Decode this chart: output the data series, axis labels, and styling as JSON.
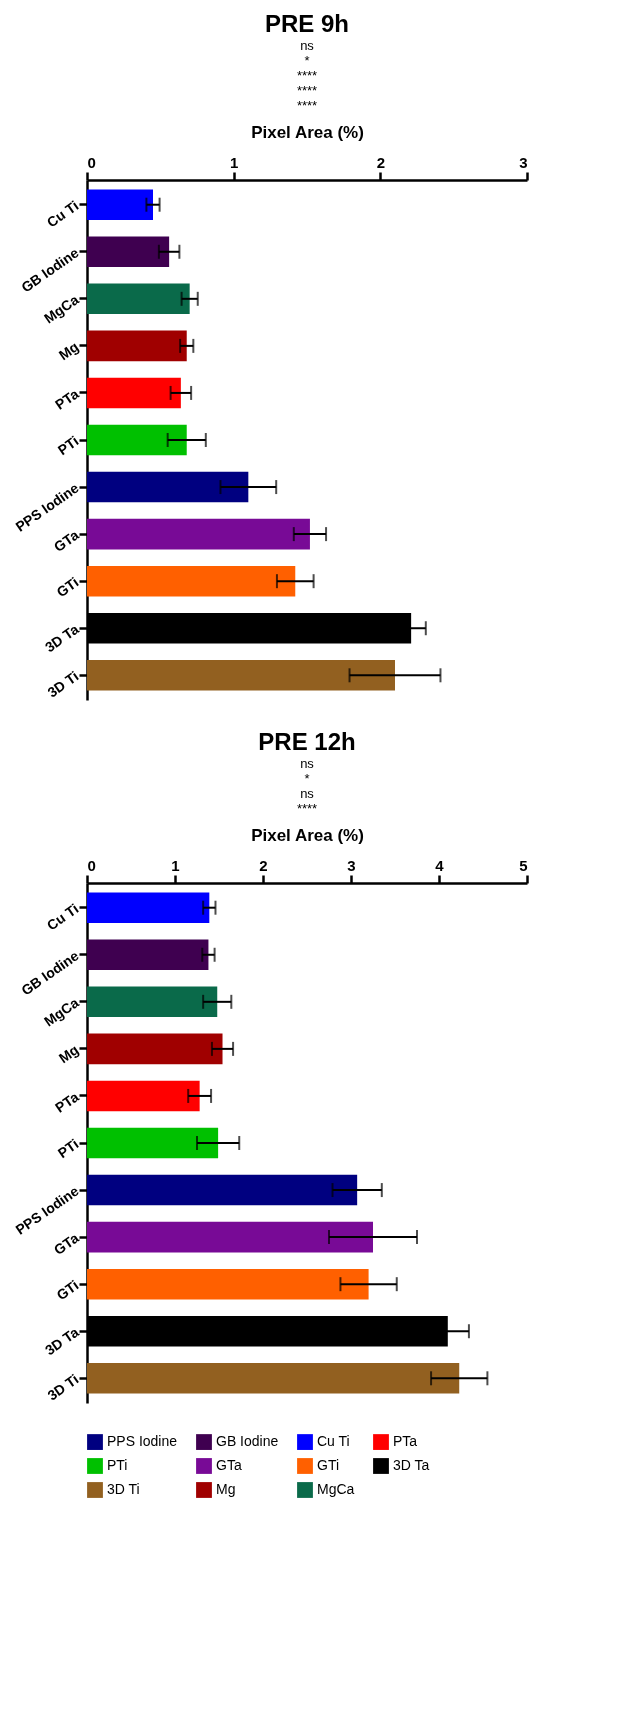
{
  "chart_data": [
    {
      "type": "bar",
      "orientation": "horizontal",
      "title": "PRE 9h",
      "xlabel": "Pixel Area  (%)",
      "categories": [
        "Cu Ti",
        "GB Iodine",
        "MgCa",
        "Mg",
        "PTa",
        "PTi",
        "PPS Iodine",
        "GTa",
        "GTi",
        "3D Ta",
        "3D Ti"
      ],
      "series": [
        {
          "name": "PPS Iodine",
          "color": "#000080",
          "values": [
            null,
            null,
            null,
            null,
            null,
            null,
            1.1,
            null,
            null,
            null,
            null
          ],
          "errors": [
            null,
            null,
            null,
            null,
            null,
            null,
            0.19,
            null,
            null,
            null,
            null
          ]
        },
        {
          "name": "GB Iodine",
          "color": "#3f0050",
          "values": [
            null,
            0.56,
            null,
            null,
            null,
            null,
            null,
            null,
            null,
            null,
            null
          ],
          "errors": [
            null,
            0.07,
            null,
            null,
            null,
            null,
            null,
            null,
            null,
            null,
            null
          ]
        },
        {
          "name": "Cu Ti",
          "color": "#0000ff",
          "values": [
            0.45,
            null,
            null,
            null,
            null,
            null,
            null,
            null,
            null,
            null,
            null
          ],
          "errors": [
            0.045,
            null,
            null,
            null,
            null,
            null,
            null,
            null,
            null,
            null,
            null
          ]
        },
        {
          "name": "PTa",
          "color": "#ff0000",
          "values": [
            null,
            null,
            null,
            null,
            0.64,
            null,
            null,
            null,
            null,
            null,
            null
          ],
          "errors": [
            null,
            null,
            null,
            null,
            0.07,
            null,
            null,
            null,
            null,
            null,
            null
          ]
        },
        {
          "name": "PTi",
          "color": "#00c000",
          "values": [
            null,
            null,
            null,
            null,
            null,
            0.68,
            null,
            null,
            null,
            null,
            null
          ],
          "errors": [
            null,
            null,
            null,
            null,
            null,
            0.13,
            null,
            null,
            null,
            null,
            null
          ]
        },
        {
          "name": "GTa",
          "color": "#780a96",
          "values": [
            null,
            null,
            null,
            null,
            null,
            null,
            null,
            1.52,
            null,
            null,
            null
          ],
          "errors": [
            null,
            null,
            null,
            null,
            null,
            null,
            null,
            0.11,
            null,
            null,
            null
          ]
        },
        {
          "name": "GTi",
          "color": "#ff6000",
          "values": [
            null,
            null,
            null,
            null,
            null,
            null,
            null,
            null,
            1.42,
            null,
            null
          ],
          "errors": [
            null,
            null,
            null,
            null,
            null,
            null,
            null,
            null,
            0.125,
            null,
            null
          ]
        },
        {
          "name": "3D Ta",
          "color": "#000000",
          "values": [
            null,
            null,
            null,
            null,
            null,
            null,
            null,
            null,
            null,
            2.21,
            null
          ],
          "errors": [
            null,
            null,
            null,
            null,
            null,
            null,
            null,
            null,
            null,
            0.1,
            null
          ]
        },
        {
          "name": "3D Ti",
          "color": "#926020",
          "values": [
            null,
            null,
            null,
            null,
            null,
            null,
            null,
            null,
            null,
            null,
            2.1
          ],
          "errors": [
            null,
            null,
            null,
            null,
            null,
            null,
            null,
            null,
            null,
            null,
            0.31
          ]
        },
        {
          "name": "Mg",
          "color": "#a00000",
          "values": [
            null,
            null,
            null,
            0.68,
            null,
            null,
            null,
            null,
            null,
            null,
            null
          ],
          "errors": [
            null,
            null,
            null,
            0.045,
            null,
            null,
            null,
            null,
            null,
            null,
            null
          ]
        },
        {
          "name": "MgCa",
          "color": "#0a6a4a",
          "values": [
            null,
            null,
            0.7,
            null,
            null,
            null,
            null,
            null,
            null,
            null,
            null
          ],
          "errors": [
            null,
            null,
            0.055,
            null,
            null,
            null,
            null,
            null,
            null,
            null,
            null
          ]
        }
      ],
      "xlim": [
        0,
        3
      ],
      "xticks": [
        0,
        1,
        2,
        3
      ],
      "annotations": [
        "ns",
        "*",
        "****",
        "****",
        "****"
      ],
      "legend": "bottom"
    },
    {
      "type": "bar",
      "orientation": "horizontal",
      "title": "PRE 12h",
      "xlabel": "Pixel Area  (%)",
      "categories": [
        "Cu Ti",
        "GB Iodine",
        "MgCa",
        "Mg",
        "PTa",
        "PTi",
        "PPS Iodine",
        "GTa",
        "GTi",
        "3D Ta",
        "3D Ti"
      ],
      "series": [
        {
          "name": "PPS Iodine",
          "color": "#000080",
          "values": [
            null,
            null,
            null,
            null,
            null,
            null,
            3.07,
            null,
            null,
            null,
            null
          ],
          "errors": [
            null,
            null,
            null,
            null,
            null,
            null,
            0.28,
            null,
            null,
            null,
            null
          ]
        },
        {
          "name": "GB Iodine",
          "color": "#3f0050",
          "values": [
            null,
            1.38,
            null,
            null,
            null,
            null,
            null,
            null,
            null,
            null,
            null
          ],
          "errors": [
            null,
            0.07,
            null,
            null,
            null,
            null,
            null,
            null,
            null,
            null,
            null
          ]
        },
        {
          "name": "Cu Ti",
          "color": "#0000ff",
          "values": [
            1.39,
            null,
            null,
            null,
            null,
            null,
            null,
            null,
            null,
            null,
            null
          ],
          "errors": [
            0.07,
            null,
            null,
            null,
            null,
            null,
            null,
            null,
            null,
            null,
            null
          ]
        },
        {
          "name": "PTa",
          "color": "#ff0000",
          "values": [
            null,
            null,
            null,
            null,
            1.28,
            null,
            null,
            null,
            null,
            null,
            null
          ],
          "errors": [
            null,
            null,
            null,
            null,
            0.13,
            null,
            null,
            null,
            null,
            null,
            null
          ]
        },
        {
          "name": "PTi",
          "color": "#00c000",
          "values": [
            null,
            null,
            null,
            null,
            null,
            1.49,
            null,
            null,
            null,
            null,
            null
          ],
          "errors": [
            null,
            null,
            null,
            null,
            null,
            0.24,
            null,
            null,
            null,
            null,
            null
          ]
        },
        {
          "name": "GTa",
          "color": "#780a96",
          "values": [
            null,
            null,
            null,
            null,
            null,
            null,
            null,
            3.25,
            null,
            null,
            null
          ],
          "errors": [
            null,
            null,
            null,
            null,
            null,
            null,
            null,
            0.5,
            null,
            null,
            null
          ]
        },
        {
          "name": "GTi",
          "color": "#ff6000",
          "values": [
            null,
            null,
            null,
            null,
            null,
            null,
            null,
            null,
            3.2,
            null,
            null
          ],
          "errors": [
            null,
            null,
            null,
            null,
            null,
            null,
            null,
            null,
            0.32,
            null,
            null
          ]
        },
        {
          "name": "3D Ta",
          "color": "#000000",
          "values": [
            null,
            null,
            null,
            null,
            null,
            null,
            null,
            null,
            null,
            4.1,
            null
          ],
          "errors": [
            null,
            null,
            null,
            null,
            null,
            null,
            null,
            null,
            null,
            0.24,
            null
          ]
        },
        {
          "name": "3D Ti",
          "color": "#926020",
          "values": [
            null,
            null,
            null,
            null,
            null,
            null,
            null,
            null,
            null,
            null,
            4.23
          ],
          "errors": [
            null,
            null,
            null,
            null,
            null,
            null,
            null,
            null,
            null,
            null,
            0.32
          ]
        },
        {
          "name": "Mg",
          "color": "#a00000",
          "values": [
            null,
            null,
            null,
            1.54,
            null,
            null,
            null,
            null,
            null,
            null,
            null
          ],
          "errors": [
            null,
            null,
            null,
            0.12,
            null,
            null,
            null,
            null,
            null,
            null,
            null
          ]
        },
        {
          "name": "MgCa",
          "color": "#0a6a4a",
          "values": [
            null,
            null,
            1.48,
            null,
            null,
            null,
            null,
            null,
            null,
            null,
            null
          ],
          "errors": [
            null,
            null,
            0.16,
            null,
            null,
            null,
            null,
            null,
            null,
            null,
            null
          ]
        }
      ],
      "xlim": [
        0,
        5
      ],
      "xticks": [
        0,
        1,
        2,
        3,
        4,
        5
      ],
      "annotations": [
        "ns",
        "*",
        "ns",
        "****"
      ],
      "legend": "bottom"
    }
  ]
}
